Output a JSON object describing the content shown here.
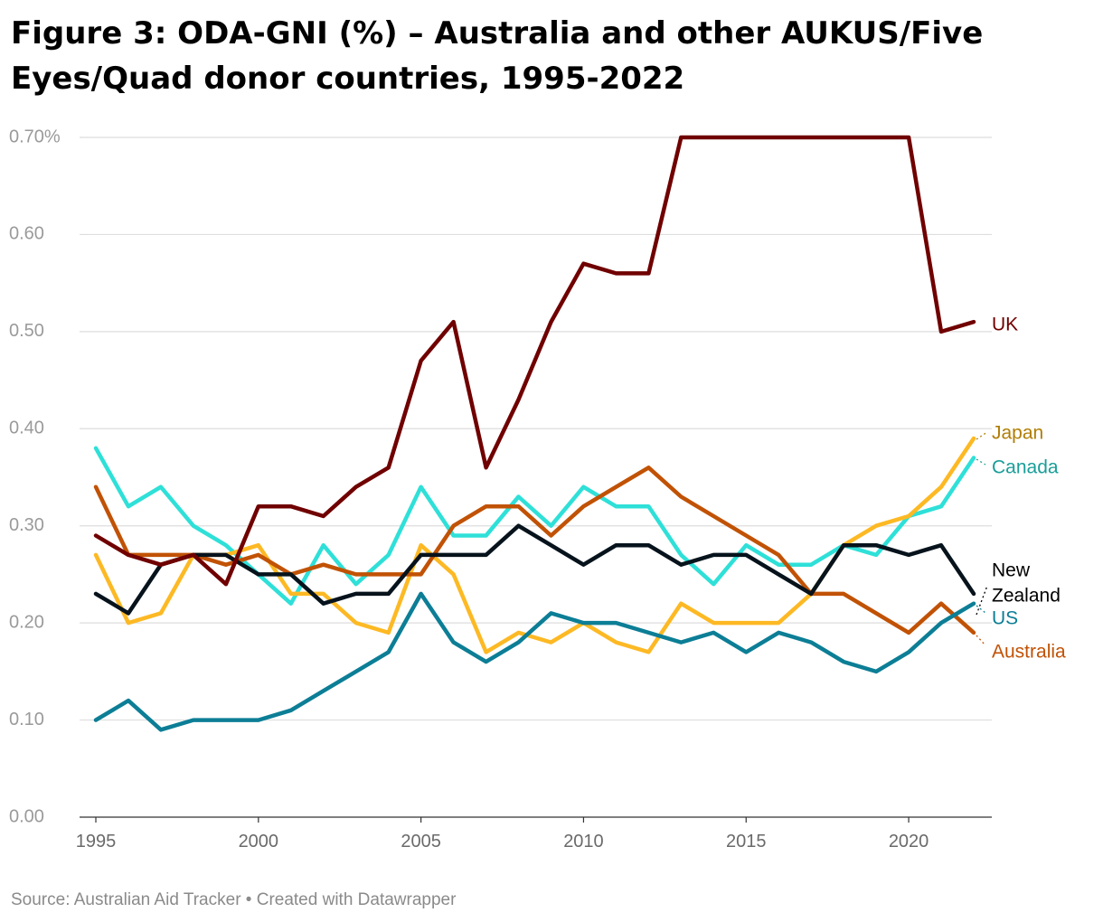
{
  "title": "Figure 3: ODA-GNI (%) – Australia and other AUKUS/Five Eyes/Quad donor countries, 1995-2022",
  "source": "Source: Australian Aid Tracker • Created with Datawrapper",
  "chart_data": {
    "type": "line",
    "title": "Figure 3: ODA-GNI (%) – Australia and other AUKUS/Five Eyes/Quad donor countries, 1995-2022",
    "xlabel": "",
    "ylabel": "",
    "ylim": [
      0,
      0.7
    ],
    "xlim": [
      1995,
      2022
    ],
    "grid": true,
    "legend": "direct labels at line ends (right)",
    "y_ticks": [
      {
        "value": 0.0,
        "label": "0.00"
      },
      {
        "value": 0.1,
        "label": "0.10"
      },
      {
        "value": 0.2,
        "label": "0.20"
      },
      {
        "value": 0.3,
        "label": "0.30"
      },
      {
        "value": 0.4,
        "label": "0.40"
      },
      {
        "value": 0.5,
        "label": "0.50"
      },
      {
        "value": 0.6,
        "label": "0.60"
      },
      {
        "value": 0.7,
        "label": "0.70%"
      }
    ],
    "x_ticks": [
      {
        "value": 1995,
        "label": "1995"
      },
      {
        "value": 2000,
        "label": "2000"
      },
      {
        "value": 2005,
        "label": "2005"
      },
      {
        "value": 2010,
        "label": "2010"
      },
      {
        "value": 2015,
        "label": "2015"
      },
      {
        "value": 2020,
        "label": "2020"
      }
    ],
    "x": [
      1995,
      1996,
      1997,
      1998,
      1999,
      2000,
      2001,
      2002,
      2003,
      2004,
      2005,
      2006,
      2007,
      2008,
      2009,
      2010,
      2011,
      2012,
      2013,
      2014,
      2015,
      2016,
      2017,
      2018,
      2019,
      2020,
      2021,
      2022
    ],
    "series": [
      {
        "name": "Canada",
        "key": "canada",
        "color": "#2ee0d8",
        "label_color": "#1a9e98",
        "label": [
          "Canada"
        ],
        "values": [
          0.38,
          0.32,
          0.34,
          0.3,
          0.28,
          0.25,
          0.22,
          0.28,
          0.24,
          0.27,
          0.34,
          0.29,
          0.29,
          0.33,
          0.3,
          0.34,
          0.32,
          0.32,
          0.27,
          0.24,
          0.28,
          0.26,
          0.26,
          0.28,
          0.27,
          0.31,
          0.32,
          0.37
        ]
      },
      {
        "name": "Japan",
        "key": "japan",
        "color": "#fdb924",
        "label_color": "#b07e05",
        "label": [
          "Japan"
        ],
        "values": [
          0.27,
          0.2,
          0.21,
          0.27,
          0.27,
          0.28,
          0.23,
          0.23,
          0.2,
          0.19,
          0.28,
          0.25,
          0.17,
          0.19,
          0.18,
          0.2,
          0.18,
          0.17,
          0.22,
          0.2,
          0.2,
          0.2,
          0.23,
          0.28,
          0.3,
          0.31,
          0.34,
          0.39
        ]
      },
      {
        "name": "Australia",
        "key": "australia",
        "color": "#c15205",
        "label_color": "#c15205",
        "label": [
          "Australia"
        ],
        "values": [
          0.34,
          0.27,
          0.27,
          0.27,
          0.26,
          0.27,
          0.25,
          0.26,
          0.25,
          0.25,
          0.25,
          0.3,
          0.32,
          0.32,
          0.29,
          0.32,
          0.34,
          0.36,
          0.33,
          0.31,
          0.29,
          0.27,
          0.23,
          0.23,
          0.21,
          0.19,
          0.22,
          0.19
        ]
      },
      {
        "name": "US",
        "key": "us",
        "color": "#0c7e96",
        "label_color": "#0c7e96",
        "label": [
          "US"
        ],
        "values": [
          0.1,
          0.12,
          0.09,
          0.1,
          0.1,
          0.1,
          0.11,
          0.13,
          0.15,
          0.17,
          0.23,
          0.18,
          0.16,
          0.18,
          0.21,
          0.2,
          0.2,
          0.19,
          0.18,
          0.19,
          0.17,
          0.19,
          0.18,
          0.16,
          0.15,
          0.17,
          0.2,
          0.22
        ]
      },
      {
        "name": "New Zealand",
        "key": "nz",
        "color": "#07131c",
        "label_color": "#000000",
        "label": [
          "New",
          "Zealand"
        ],
        "values": [
          0.23,
          0.21,
          0.26,
          0.27,
          0.27,
          0.25,
          0.25,
          0.22,
          0.23,
          0.23,
          0.27,
          0.27,
          0.27,
          0.3,
          0.28,
          0.26,
          0.28,
          0.28,
          0.26,
          0.27,
          0.27,
          0.25,
          0.23,
          0.28,
          0.28,
          0.27,
          0.28,
          0.23
        ]
      },
      {
        "name": "UK",
        "key": "uk",
        "color": "#700000",
        "label_color": "#700000",
        "label": [
          "UK"
        ],
        "values": [
          0.29,
          0.27,
          0.26,
          0.27,
          0.24,
          0.32,
          0.32,
          0.31,
          0.34,
          0.36,
          0.47,
          0.51,
          0.36,
          0.43,
          0.51,
          0.57,
          0.56,
          0.56,
          0.7,
          0.7,
          0.7,
          0.7,
          0.7,
          0.7,
          0.7,
          0.7,
          0.5,
          0.51
        ]
      }
    ]
  }
}
